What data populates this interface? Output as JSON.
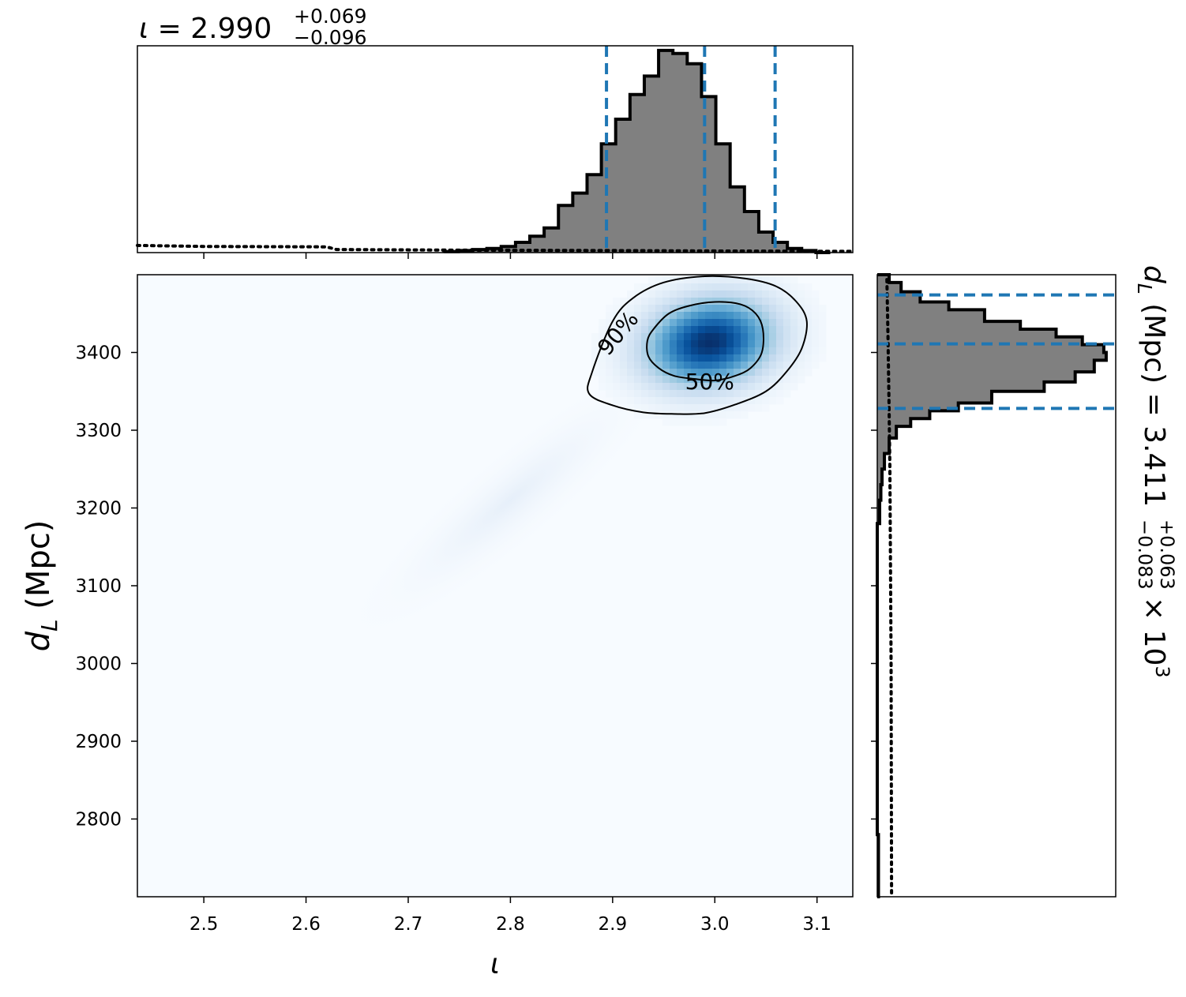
{
  "colors": {
    "hist_fill": "#808080",
    "hist_edge": "#000000",
    "quantile_line": "#1f77b4",
    "prior_line": "#000000",
    "density_low": "#f7fbff",
    "density_high": "#08306b",
    "contour": "#000000"
  },
  "chart_data": [
    {
      "id": "iota-marginal",
      "type": "histogram",
      "title": {
        "symbol": "ι",
        "median": "2.990",
        "plus": "+0.069",
        "minus": "−0.096",
        "exponent": ""
      },
      "xlim": [
        2.435,
        3.135
      ],
      "ylim": [
        0,
        1.0
      ],
      "xticks": [
        2.5,
        2.6,
        2.7,
        2.8,
        2.9,
        3.0,
        3.1
      ],
      "xtick_labels": [
        "2.5",
        "2.6",
        "2.7",
        "2.8",
        "2.9",
        "3.0",
        "3.1"
      ],
      "bin_edges": [
        2.735,
        2.749,
        2.763,
        2.777,
        2.791,
        2.805,
        2.819,
        2.833,
        2.847,
        2.861,
        2.875,
        2.889,
        2.903,
        2.917,
        2.931,
        2.945,
        2.959,
        2.973,
        2.987,
        3.001,
        3.015,
        3.029,
        3.043,
        3.057,
        3.071,
        3.085,
        3.099,
        3.113
      ],
      "counts": [
        0.005,
        0.01,
        0.015,
        0.02,
        0.03,
        0.05,
        0.08,
        0.12,
        0.23,
        0.29,
        0.38,
        0.53,
        0.65,
        0.77,
        0.86,
        0.985,
        0.97,
        0.92,
        0.76,
        0.53,
        0.32,
        0.2,
        0.1,
        0.05,
        0.02,
        0.01,
        0.0
      ],
      "quantiles": [
        2.894,
        2.99,
        3.059
      ],
      "prior_x": [
        2.435,
        2.5,
        2.62,
        2.63,
        2.75,
        2.9,
        3.0,
        3.135
      ],
      "prior_y": [
        0.035,
        0.03,
        0.028,
        0.015,
        0.012,
        0.01,
        0.008,
        0.006
      ]
    },
    {
      "id": "joint-density",
      "type": "heatmap",
      "xlabel": "ι",
      "ylabel": {
        "symbol": "d",
        "subscript": "L",
        "unit": "(Mpc)"
      },
      "xlim": [
        2.435,
        3.135
      ],
      "ylim": [
        2700,
        3500
      ],
      "xticks": [
        2.5,
        2.6,
        2.7,
        2.8,
        2.9,
        3.0,
        3.1
      ],
      "xtick_labels": [
        "2.5",
        "2.6",
        "2.7",
        "2.8",
        "2.9",
        "3.0",
        "3.1"
      ],
      "yticks": [
        2800,
        2900,
        3000,
        3100,
        3200,
        3300,
        3400
      ],
      "ytick_labels": [
        "2800",
        "2900",
        "3000",
        "3100",
        "3200",
        "3300",
        "3400"
      ],
      "peak": {
        "x": 2.995,
        "y": 3413
      },
      "contours": [
        {
          "label": "50%",
          "label_at": [
            2.995,
            3363
          ],
          "label_angle": 0,
          "points": [
            [
              2.94,
              3430
            ],
            [
              2.955,
              3450
            ],
            [
              2.975,
              3460
            ],
            [
              3.0,
              3465
            ],
            [
              3.025,
              3462
            ],
            [
              3.04,
              3450
            ],
            [
              3.047,
              3430
            ],
            [
              3.046,
              3400
            ],
            [
              3.035,
              3380
            ],
            [
              3.02,
              3370
            ],
            [
              3.0,
              3364
            ],
            [
              2.98,
              3366
            ],
            [
              2.96,
              3370
            ],
            [
              2.945,
              3380
            ],
            [
              2.935,
              3395
            ],
            [
              2.934,
              3415
            ]
          ]
        },
        {
          "label": "90%",
          "label_at": [
            2.905,
            3425
          ],
          "label_angle": -50,
          "points": [
            [
              2.88,
              3375
            ],
            [
              2.9,
              3440
            ],
            [
              2.92,
              3470
            ],
            [
              2.95,
              3490
            ],
            [
              2.99,
              3498
            ],
            [
              3.03,
              3495
            ],
            [
              3.06,
              3485
            ],
            [
              3.08,
              3465
            ],
            [
              3.09,
              3440
            ],
            [
              3.085,
              3405
            ],
            [
              3.07,
              3375
            ],
            [
              3.05,
              3350
            ],
            [
              3.02,
              3333
            ],
            [
              2.99,
              3322
            ],
            [
              2.96,
              3321
            ],
            [
              2.93,
              3323
            ],
            [
              2.9,
              3332
            ],
            [
              2.877,
              3347
            ]
          ]
        }
      ]
    },
    {
      "id": "dL-marginal",
      "type": "histogram",
      "orientation": "horizontal",
      "title": {
        "symbol": "d",
        "subscript": "L",
        "unit": "(Mpc)",
        "median": "3.411",
        "plus": "+0.063",
        "minus": "−0.083",
        "exponent": "10",
        "power": "3"
      },
      "ylim": [
        2700,
        3500
      ],
      "xlim": [
        0,
        1.0
      ],
      "yticks": [
        2800,
        2900,
        3000,
        3100,
        3200,
        3300,
        3400
      ],
      "bin_edges": [
        2700,
        2780,
        3180,
        3210,
        3230,
        3250,
        3270,
        3290,
        3305,
        3315,
        3325,
        3335,
        3350,
        3362,
        3375,
        3390,
        3400,
        3410,
        3420,
        3430,
        3440,
        3455,
        3465,
        3478,
        3490,
        3500
      ],
      "counts": [
        0.005,
        0.0,
        0.01,
        0.015,
        0.02,
        0.03,
        0.05,
        0.08,
        0.14,
        0.22,
        0.34,
        0.48,
        0.7,
        0.83,
        0.91,
        0.96,
        0.95,
        0.86,
        0.75,
        0.6,
        0.45,
        0.3,
        0.18,
        0.1,
        0.05
      ],
      "quantiles": [
        3328,
        3411,
        3474
      ],
      "prior_x": [
        0.06,
        0.058,
        0.053,
        0.05,
        0.045,
        0.04
      ],
      "prior_y": [
        2705,
        3000,
        3250,
        3320,
        3420,
        3500
      ]
    }
  ]
}
